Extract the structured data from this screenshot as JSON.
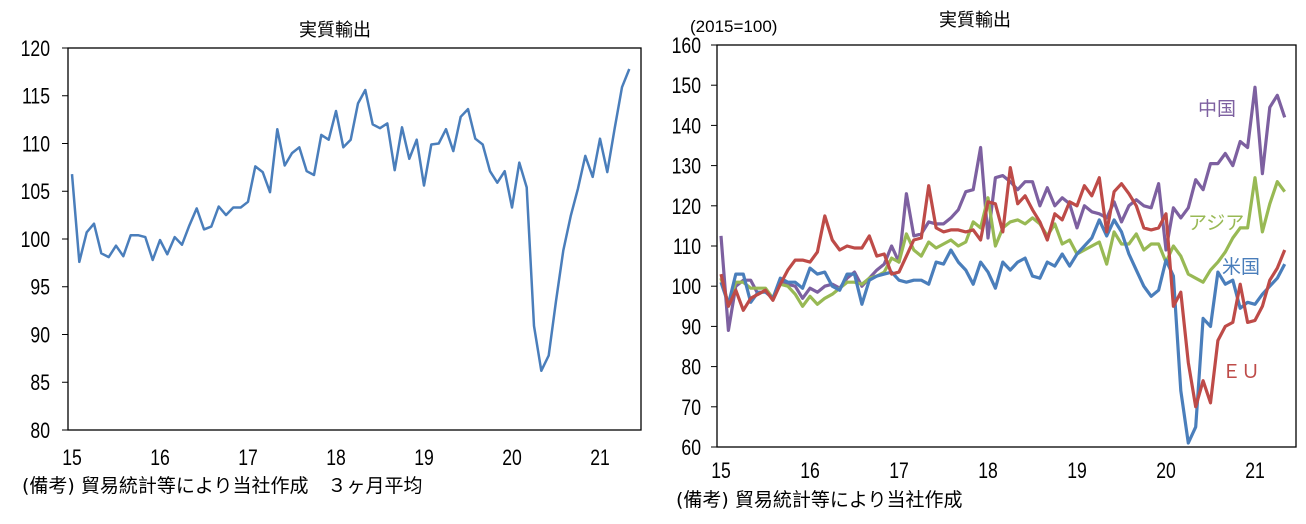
{
  "chart_data": [
    {
      "type": "line",
      "title": "実質輸出",
      "xlabel": "",
      "ylabel": "",
      "ylim": [
        80,
        120
      ],
      "yticks": [
        80,
        85,
        90,
        95,
        100,
        105,
        110,
        115,
        120
      ],
      "xtick_labels": [
        "15",
        "16",
        "17",
        "18",
        "19",
        "20",
        "21"
      ],
      "x_start": "2015-01",
      "x_frequency": "monthly",
      "grid": false,
      "footnote": "(備考) 貿易統計等により当社作成　３ヶ月平均",
      "series": [
        {
          "color": "#4a7ebb",
          "values": [
            106.8,
            97.6,
            100.7,
            101.6,
            98.5,
            98.1,
            99.3,
            98.2,
            100.4,
            100.4,
            100.2,
            97.8,
            99.9,
            98.4,
            100.2,
            99.4,
            101.4,
            103.2,
            101.0,
            101.3,
            103.4,
            102.5,
            103.3,
            103.3,
            103.9,
            107.6,
            107.0,
            104.9,
            111.5,
            107.7,
            109.0,
            109.6,
            107.1,
            106.7,
            110.9,
            110.4,
            113.4,
            109.6,
            110.4,
            114.2,
            115.6,
            112.0,
            111.6,
            112.1,
            107.2,
            111.7,
            108.4,
            110.4,
            105.6,
            109.9,
            110.0,
            111.5,
            109.2,
            112.8,
            113.6,
            110.5,
            109.9,
            107.1,
            105.9,
            107.1,
            103.3,
            108.0,
            105.4,
            90.9,
            86.2,
            87.8,
            93.5,
            98.8,
            102.4,
            105.3,
            108.7,
            106.5,
            110.5,
            107.0,
            111.6,
            115.9,
            117.8
          ]
        }
      ]
    },
    {
      "type": "line",
      "title": "実質輸出",
      "unit_note": "(2015=100)",
      "xlabel": "",
      "ylabel": "",
      "ylim": [
        60,
        160
      ],
      "yticks": [
        60,
        70,
        80,
        90,
        100,
        110,
        120,
        130,
        140,
        150,
        160
      ],
      "xtick_labels": [
        "15",
        "16",
        "17",
        "18",
        "19",
        "20",
        "21"
      ],
      "x_start": "2015-01",
      "x_frequency": "monthly",
      "grid": false,
      "footnote": "(備考) 貿易統計等により当社作成",
      "series": [
        {
          "name": "中国",
          "color": "#7d60a0",
          "values": [
            112.5,
            89,
            100,
            101.5,
            101.5,
            98,
            99,
            97,
            101,
            100.5,
            100,
            97,
            99.5,
            98.5,
            100,
            100.5,
            99.5,
            102,
            103.5,
            100,
            102,
            104,
            105.5,
            110,
            106,
            123,
            112.5,
            113,
            116,
            115.5,
            115.5,
            117,
            119,
            123.5,
            124,
            134.5,
            112,
            127,
            127.5,
            126,
            124,
            126,
            126,
            120,
            124.5,
            120,
            122,
            120.5,
            114.5,
            120,
            118.5,
            118,
            117,
            121,
            116,
            120,
            121.5,
            120,
            119.5,
            125.5,
            109,
            119.5,
            117,
            119.5,
            126.5,
            124,
            130.5,
            130.5,
            133,
            130,
            136,
            134.5,
            149.5,
            128,
            144.5,
            147.5,
            142
          ]
        },
        {
          "name": "アジア",
          "color": "#98b954",
          "values": [
            102,
            95.5,
            101,
            101,
            99.5,
            99.5,
            99.5,
            97,
            100.5,
            100,
            98,
            95,
            97.5,
            95.5,
            97,
            98,
            99.5,
            101,
            101,
            100.5,
            102,
            102.5,
            103.5,
            107,
            106,
            113,
            109,
            107.5,
            111,
            109.5,
            110.5,
            111.5,
            110,
            111,
            116,
            114.5,
            122,
            110,
            114.5,
            116,
            116.5,
            115.5,
            117,
            115.5,
            112.5,
            115.5,
            110.5,
            111.5,
            108,
            109,
            110,
            111,
            105.5,
            113.5,
            110.5,
            110.5,
            113,
            109,
            110.5,
            110.5,
            106,
            110,
            107.5,
            103,
            102,
            101,
            104,
            106,
            108.5,
            112,
            114.5,
            114.5,
            127,
            113.5,
            120.5,
            126,
            123.5
          ]
        },
        {
          "name": "米国",
          "color": "#4a7ebb",
          "values": [
            101,
            95.5,
            103,
            103,
            96,
            98.5,
            98.5,
            97,
            102,
            101,
            101,
            99.5,
            104.5,
            103,
            103.5,
            100,
            99,
            103,
            103,
            95.5,
            101.5,
            102.5,
            103,
            103.5,
            101.5,
            101,
            101.5,
            101.5,
            100.5,
            106,
            105.5,
            109,
            106,
            104,
            100.5,
            106,
            103.5,
            99.5,
            106,
            104,
            106,
            107,
            102.5,
            102,
            106,
            105,
            108,
            105,
            108,
            110,
            112,
            116.5,
            112.5,
            116.5,
            113.5,
            108,
            104,
            100,
            97.5,
            99,
            106.5,
            102.5,
            74,
            61,
            65,
            92,
            90,
            103.5,
            100.5,
            101.5,
            94.5,
            96,
            95.5,
            98,
            100,
            102,
            105.5
          ]
        },
        {
          "name": "ＥＵ",
          "color": "#be4b48",
          "values": [
            103,
            95,
            99,
            94,
            97,
            98,
            99,
            96.5,
            100.5,
            104,
            106.5,
            106.5,
            106,
            108.5,
            117.5,
            111.5,
            109,
            110,
            109.5,
            109.5,
            112.5,
            107.5,
            108,
            103,
            103.5,
            107.5,
            111.5,
            112,
            125,
            114.5,
            113.5,
            114,
            114,
            113.5,
            114,
            111.5,
            121,
            120.5,
            113.5,
            129.5,
            120.5,
            122.5,
            119,
            116,
            111.5,
            118,
            116.5,
            121,
            120,
            125,
            122.5,
            127,
            113.5,
            123.5,
            125.5,
            123,
            120,
            114.5,
            114,
            114.5,
            118,
            95,
            98.5,
            81,
            70,
            76.5,
            71,
            86.5,
            90,
            91,
            100.5,
            91,
            91.5,
            95,
            101.5,
            104.5,
            109
          ]
        }
      ]
    }
  ]
}
